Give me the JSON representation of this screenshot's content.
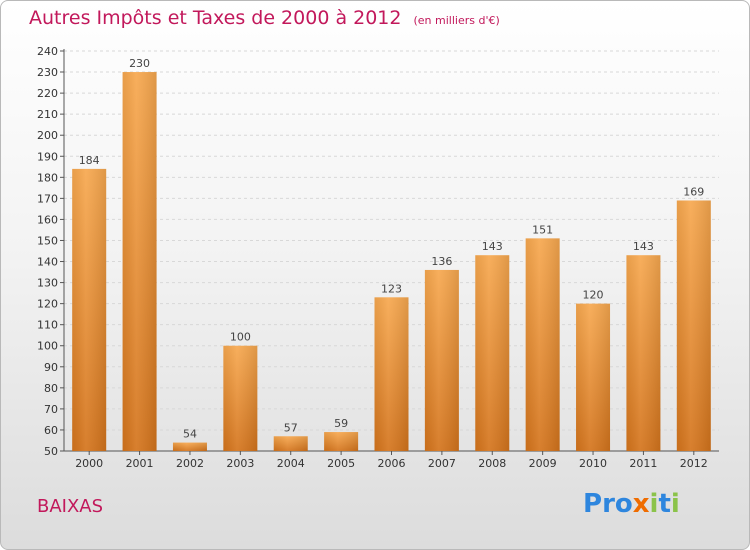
{
  "header": {
    "title": "Autres Impôts et Taxes de 2000 à 2012",
    "subtitle": "(en milliers d'€)"
  },
  "footer": {
    "location": "BAIXAS",
    "brand": "Proxiti",
    "brand_letters": [
      {
        "char": "P",
        "color": "#2e86de"
      },
      {
        "char": "r",
        "color": "#2e86de"
      },
      {
        "char": "o",
        "color": "#2e86de"
      },
      {
        "char": "x",
        "color": "#ef6c00"
      },
      {
        "char": "i",
        "color": "#8bc34a"
      },
      {
        "char": "t",
        "color": "#2e86de"
      },
      {
        "char": "i",
        "color": "#8bc34a"
      }
    ]
  },
  "colors": {
    "bar_top": "#f7a84f",
    "bar_bottom": "#d4741c",
    "title": "#c2185b",
    "axis": "#555555",
    "grid": "#d8d8d8"
  },
  "chart_data": {
    "type": "bar",
    "categories": [
      "2000",
      "2001",
      "2002",
      "2003",
      "2004",
      "2005",
      "2006",
      "2007",
      "2008",
      "2009",
      "2010",
      "2011",
      "2012"
    ],
    "values": [
      184,
      230,
      54,
      100,
      57,
      59,
      123,
      136,
      143,
      151,
      120,
      143,
      169
    ],
    "ylim": [
      50,
      240
    ],
    "yticks": [
      50,
      60,
      70,
      80,
      90,
      100,
      110,
      120,
      130,
      140,
      150,
      160,
      170,
      180,
      190,
      200,
      210,
      220,
      230,
      240
    ],
    "grid": true,
    "data_labels": true
  }
}
